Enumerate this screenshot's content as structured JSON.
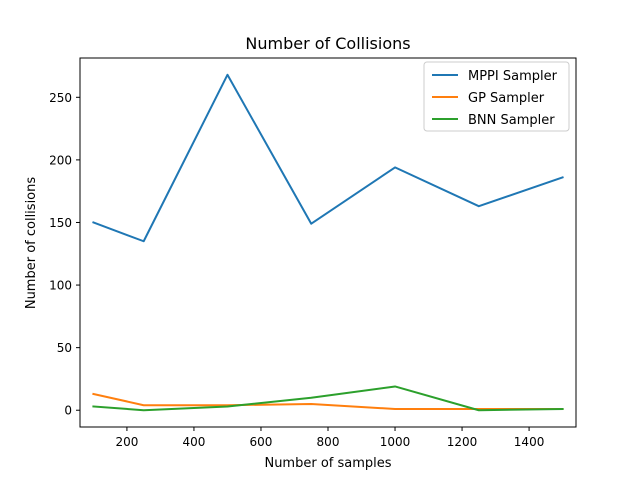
{
  "chart_data": {
    "type": "line",
    "title": "Number of Collisions",
    "xlabel": "Number of samples",
    "ylabel": "Number of collisions",
    "xlim": [
      60,
      1540
    ],
    "ylim": [
      -13.4,
      281.4
    ],
    "xticks": [
      200,
      400,
      600,
      800,
      1000,
      1200,
      1400
    ],
    "yticks": [
      0,
      50,
      100,
      150,
      200,
      250
    ],
    "x": [
      100,
      250,
      500,
      750,
      1000,
      1250,
      1500
    ],
    "series": [
      {
        "name": "MPPI Sampler",
        "color": "#1f77b4",
        "values": [
          150,
          135,
          268,
          149,
          194,
          163,
          186
        ]
      },
      {
        "name": "GP Sampler",
        "color": "#ff7f0e",
        "values": [
          13,
          4,
          4,
          5,
          1,
          1,
          1
        ]
      },
      {
        "name": "BNN Sampler",
        "color": "#2ca02c",
        "values": [
          3,
          0,
          3,
          10,
          19,
          0,
          1
        ]
      }
    ],
    "grid": false,
    "legend_position": "top-right"
  }
}
